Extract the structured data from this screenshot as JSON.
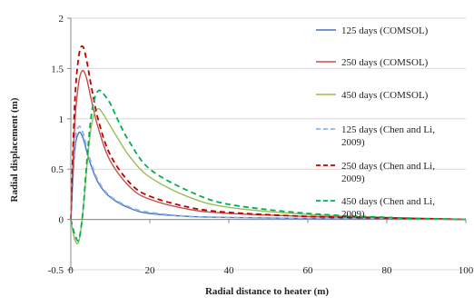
{
  "chart_data": {
    "type": "line",
    "xlabel": "Radial distance to heater (m)",
    "ylabel": "Radial displacement (m)",
    "xlim": [
      0,
      100
    ],
    "ylim": [
      -0.5,
      2
    ],
    "x_ticks": [
      "0",
      "20",
      "40",
      "60",
      "80",
      "100"
    ],
    "y_ticks": [
      "-0.5",
      "0",
      "0.5",
      "1",
      "1.5",
      "2"
    ],
    "grid": "horizontal",
    "legend_position": "right",
    "series": [
      {
        "name": "125 days (COMSOL)",
        "color": "#4472c4",
        "dash": "solid",
        "x": [
          0,
          1,
          2,
          3,
          4,
          5,
          7,
          10,
          15,
          20,
          30,
          40,
          60,
          80,
          100
        ],
        "y": [
          0,
          0.68,
          0.86,
          0.82,
          0.68,
          0.55,
          0.36,
          0.22,
          0.11,
          0.06,
          0.03,
          0.02,
          0.01,
          0.005,
          0
        ]
      },
      {
        "name": "250 days (COMSOL)",
        "color": "#c0504d",
        "dash": "solid",
        "x": [
          0,
          1,
          2,
          3,
          4,
          5,
          7,
          10,
          15,
          20,
          30,
          40,
          60,
          80,
          100
        ],
        "y": [
          0,
          0.95,
          1.36,
          1.48,
          1.4,
          1.22,
          0.9,
          0.58,
          0.32,
          0.2,
          0.1,
          0.06,
          0.03,
          0.015,
          0
        ]
      },
      {
        "name": "450 days (COMSOL)",
        "color": "#9bbb59",
        "dash": "solid",
        "x": [
          0,
          1,
          2,
          3,
          4,
          5,
          6,
          7,
          8,
          10,
          12,
          15,
          20,
          30,
          40,
          60,
          80,
          100
        ],
        "y": [
          0,
          -0.2,
          -0.22,
          0.05,
          0.5,
          0.88,
          1.06,
          1.1,
          1.06,
          0.93,
          0.8,
          0.62,
          0.42,
          0.22,
          0.12,
          0.05,
          0.02,
          0
        ]
      },
      {
        "name": "125 days (Chen and Li, 2009)",
        "color": "#8eb4e3",
        "dash": "dashed",
        "x": [
          0,
          1,
          2,
          3,
          4,
          5,
          7,
          10,
          15,
          20,
          30,
          40,
          60,
          80,
          100
        ],
        "y": [
          0,
          0.75,
          0.92,
          0.87,
          0.72,
          0.58,
          0.38,
          0.23,
          0.12,
          0.07,
          0.03,
          0.02,
          0.01,
          0.005,
          0
        ]
      },
      {
        "name": "250 days (Chen and Li, 2009)",
        "color": "#c00000",
        "dash": "dashed",
        "x": [
          0,
          1,
          2,
          3,
          4,
          5,
          7,
          10,
          15,
          20,
          30,
          40,
          60,
          80,
          100
        ],
        "y": [
          0,
          1.15,
          1.62,
          1.72,
          1.58,
          1.36,
          0.98,
          0.64,
          0.36,
          0.23,
          0.12,
          0.07,
          0.03,
          0.015,
          0
        ]
      },
      {
        "name": "450 days (Chen and Li, 2009)",
        "color": "#00b050",
        "dash": "dashed",
        "x": [
          0,
          1,
          2,
          3,
          4,
          5,
          6,
          7,
          8,
          10,
          12,
          15,
          20,
          30,
          40,
          60,
          80,
          100
        ],
        "y": [
          0,
          -0.15,
          -0.2,
          0.05,
          0.55,
          0.98,
          1.2,
          1.28,
          1.26,
          1.15,
          0.98,
          0.76,
          0.5,
          0.28,
          0.15,
          0.06,
          0.02,
          0
        ]
      }
    ],
    "legend_labels": [
      [
        "125 days (COMSOL)"
      ],
      [
        "250 days (COMSOL)"
      ],
      [
        "450 days (COMSOL)"
      ],
      [
        "125 days (Chen and Li,",
        "2009)"
      ],
      [
        "250 days (Chen and Li,",
        "2009)"
      ],
      [
        "450 days (Chen and Li,",
        "2009)"
      ]
    ]
  }
}
